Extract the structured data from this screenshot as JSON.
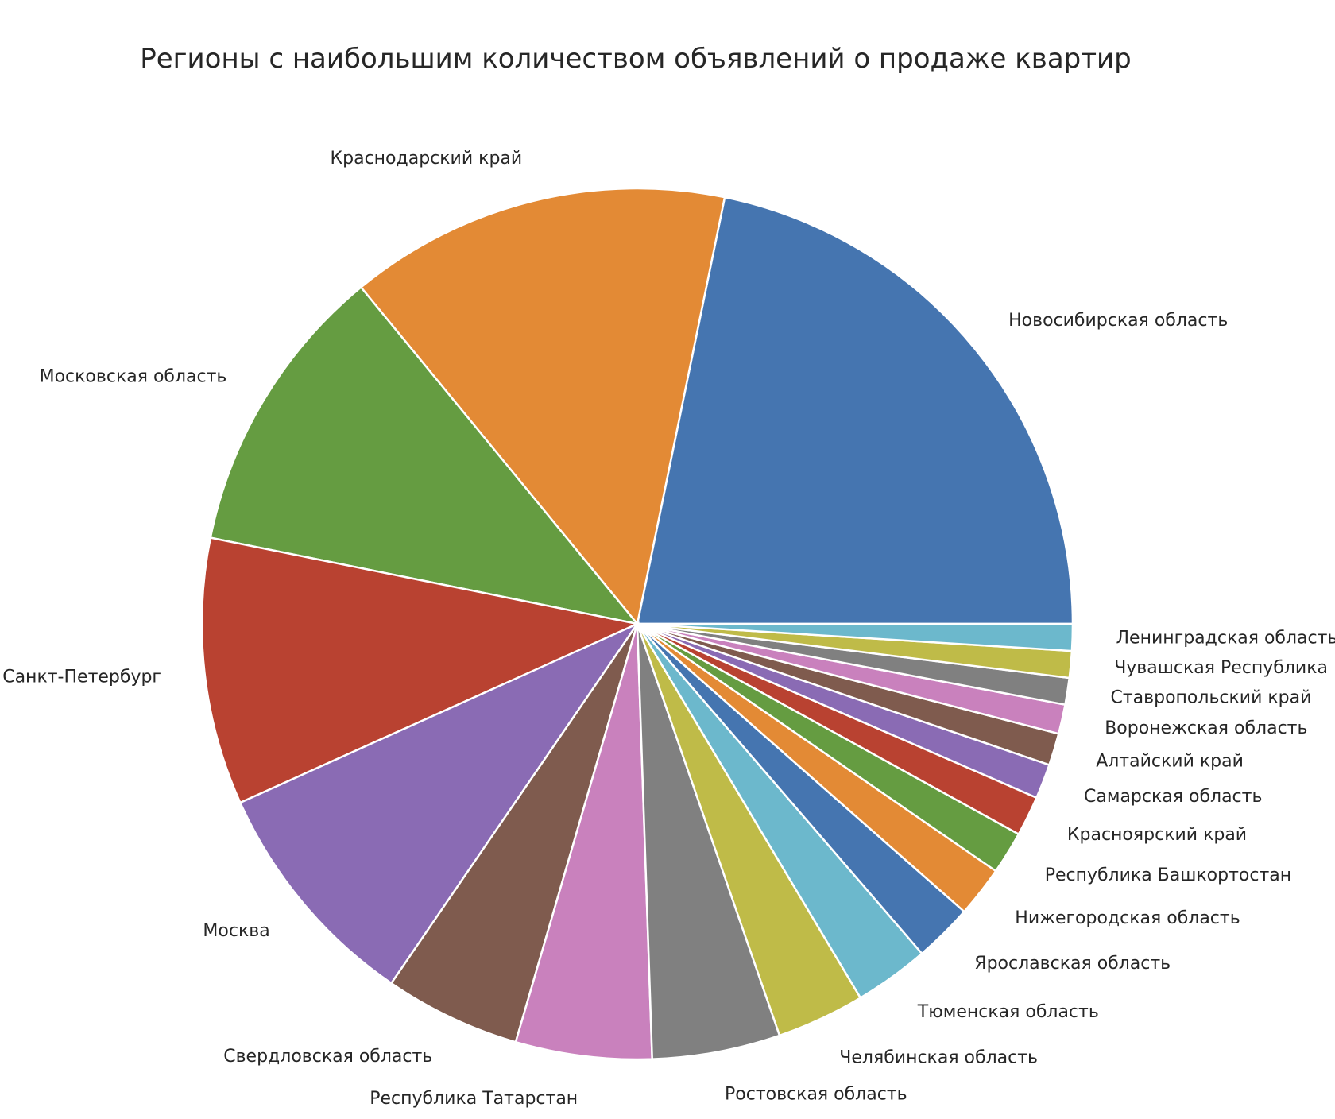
{
  "chart_data": {
    "type": "pie",
    "title": "Регионы с наибольшим количеством объявлений о продаже квартир",
    "start_angle_deg": 0,
    "direction": "counterclockwise",
    "slices": [
      {
        "label": "Новосибирская область",
        "value": 22.0,
        "color": "#4575b0"
      },
      {
        "label": "Краснодарский край",
        "value": 14.3,
        "color": "#e38a35"
      },
      {
        "label": "Московская область",
        "value": 11.0,
        "color": "#659c41"
      },
      {
        "label": "Санкт-Петербург",
        "value": 10.0,
        "color": "#b94231"
      },
      {
        "label": "Москва",
        "value": 8.8,
        "color": "#8a6bb4"
      },
      {
        "label": "Свердловская область",
        "value": 5.1,
        "color": "#7f5b4e"
      },
      {
        "label": "Республика Татарстан",
        "value": 5.1,
        "color": "#c981bd"
      },
      {
        "label": "Ростовская область",
        "value": 4.8,
        "color": "#808080"
      },
      {
        "label": "Челябинская область",
        "value": 3.3,
        "color": "#bfbb48"
      },
      {
        "label": "Тюменская область",
        "value": 2.8,
        "color": "#6cb8cc"
      },
      {
        "label": "Ярославская область",
        "value": 2.2,
        "color": "#4575b0"
      },
      {
        "label": "Нижегородская область",
        "value": 1.9,
        "color": "#e38a35"
      },
      {
        "label": "Республика Башкортостан",
        "value": 1.6,
        "color": "#659c41"
      },
      {
        "label": "Красноярский край",
        "value": 1.5,
        "color": "#b94231"
      },
      {
        "label": "Самарская область",
        "value": 1.3,
        "color": "#8a6bb4"
      },
      {
        "label": "Алтайский край",
        "value": 1.2,
        "color": "#7f5b4e"
      },
      {
        "label": "Воронежская область",
        "value": 1.1,
        "color": "#c981bd"
      },
      {
        "label": "Ставропольский край",
        "value": 1.0,
        "color": "#808080"
      },
      {
        "label": "Чувашская Республика",
        "value": 1.0,
        "color": "#bfbb48"
      },
      {
        "label": "Ленинградская область",
        "value": 1.0,
        "color": "#6cb8cc"
      }
    ]
  }
}
